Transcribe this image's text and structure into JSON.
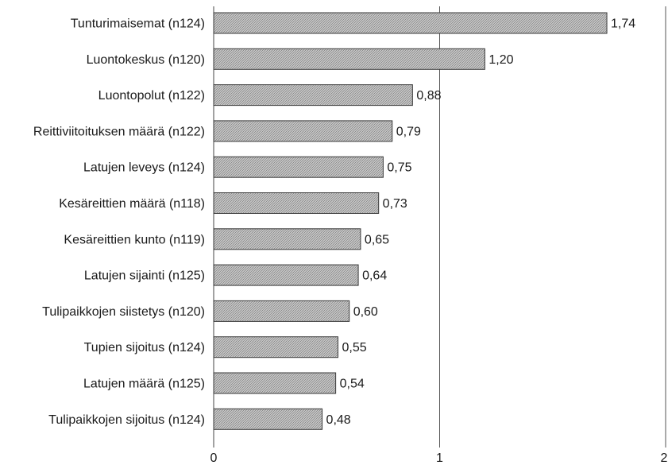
{
  "chart_data": {
    "type": "bar",
    "orientation": "horizontal",
    "title": "",
    "xlabel": "",
    "ylabel": "",
    "categories": [
      "Tunturimaisemat (n124)",
      "Luontokeskus (n120)",
      "Luontopolut (n122)",
      "Reittiviitoituksen määrä (n122)",
      "Latujen leveys (n124)",
      "Kesäreittien määrä (n118)",
      "Kesäreittien kunto (n119)",
      "Latujen sijainti (n125)",
      "Tulipaikkojen siistetys (n120)",
      "Tupien sijoitus (n124)",
      "Latujen määrä (n125)",
      "Tulipaikkojen sijoitus (n124)"
    ],
    "values": [
      1.74,
      1.2,
      0.88,
      0.79,
      0.75,
      0.73,
      0.65,
      0.64,
      0.6,
      0.55,
      0.54,
      0.48
    ],
    "value_labels": [
      "1,74",
      "1,20",
      "0,88",
      "0,79",
      "0,75",
      "0,73",
      "0,65",
      "0,64",
      "0,60",
      "0,55",
      "0,54",
      "0,48"
    ],
    "xlim": [
      0,
      2
    ],
    "x_ticks": [
      0,
      1,
      2
    ],
    "x_tick_labels": [
      "0",
      "1",
      "2"
    ],
    "grid": "vertical",
    "legend": "none",
    "bar_color": "#b4b4b4",
    "bar_border_color": "#3a3a3a",
    "gridline_color": "#555555"
  }
}
